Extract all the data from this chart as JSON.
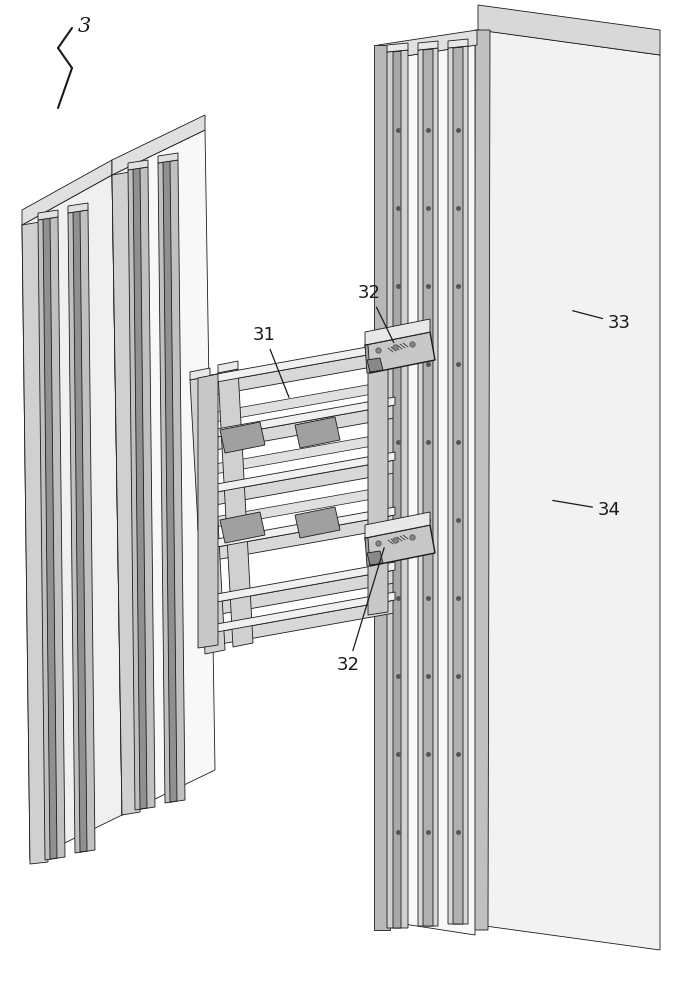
{
  "figure_num": "3",
  "bg_color": "#ffffff",
  "line_color": "#1a1a1a",
  "colors": {
    "white": "#ffffff",
    "light_gray": "#e8e8e8",
    "mid_gray": "#d0d0d0",
    "gray": "#b0b0b0",
    "dark_gray": "#808080",
    "very_dark": "#484848",
    "near_black": "#282828"
  }
}
